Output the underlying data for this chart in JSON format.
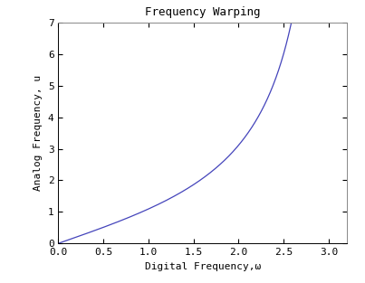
{
  "title": "Frequency Warping",
  "xlabel": "Digital Frequency,ω",
  "ylabel": "Analog Frequency, u",
  "xlim": [
    0,
    3.2
  ],
  "ylim": [
    0,
    7
  ],
  "xticks": [
    0,
    0.5,
    1.0,
    1.5,
    2.0,
    2.5,
    3.0
  ],
  "yticks": [
    0,
    1,
    2,
    3,
    4,
    5,
    6,
    7
  ],
  "line_color": "#4444bb",
  "line_width": 0.9,
  "omega_start": 0.005,
  "omega_end": 2.618,
  "num_points": 1000,
  "scale_factor": 2.0,
  "background_color": "#ffffff",
  "title_fontsize": 9,
  "label_fontsize": 8,
  "tick_fontsize": 8
}
